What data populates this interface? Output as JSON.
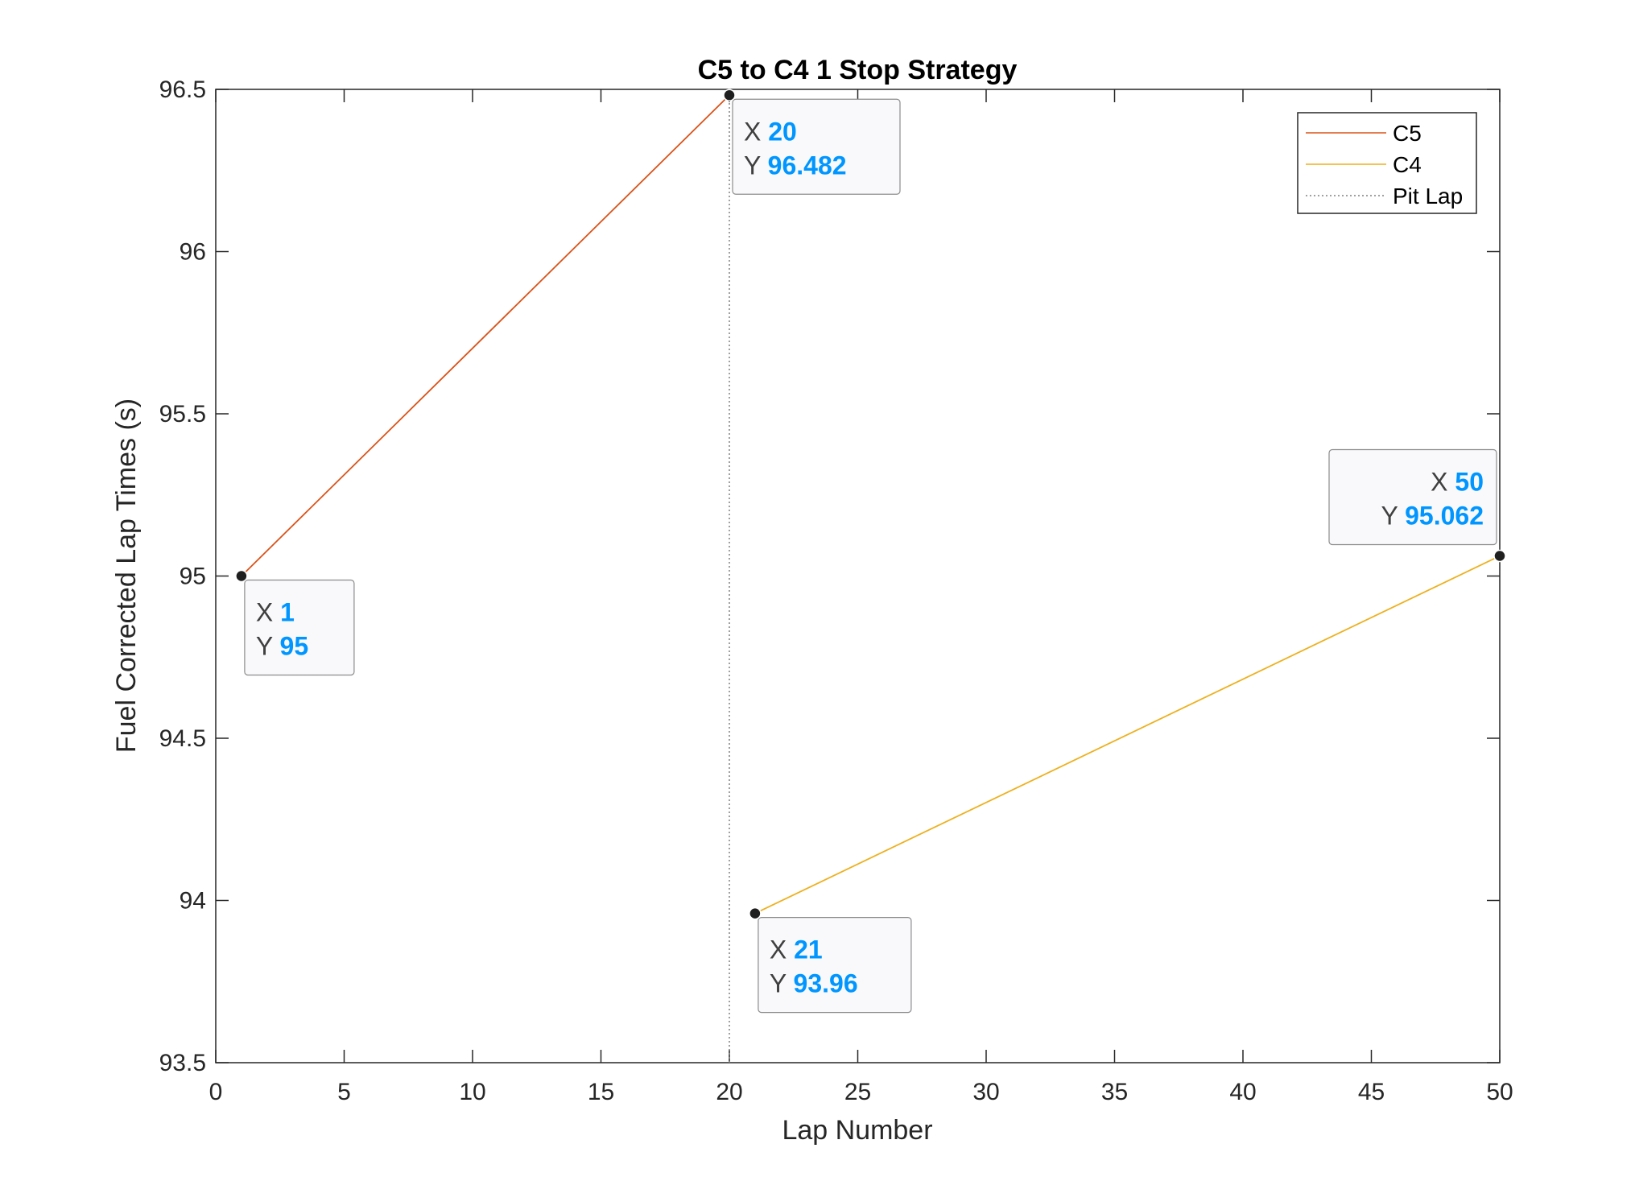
{
  "chart_data": {
    "type": "line",
    "title": "C5 to C4 1 Stop Strategy",
    "xlabel": "Lap Number",
    "ylabel": "Fuel Corrected Lap Times (s)",
    "xlim": [
      0,
      50
    ],
    "ylim": [
      93.5,
      96.5
    ],
    "xticks": [
      0,
      5,
      10,
      15,
      20,
      25,
      30,
      35,
      40,
      45,
      50
    ],
    "yticks": [
      93.5,
      94,
      94.5,
      95,
      95.5,
      96,
      96.5
    ],
    "xtick_labels": [
      "0",
      "5",
      "10",
      "15",
      "20",
      "25",
      "30",
      "35",
      "40",
      "45",
      "50"
    ],
    "ytick_labels": [
      "93.5",
      "94",
      "94.5",
      "95",
      "95.5",
      "96",
      "96.5"
    ],
    "grid": false,
    "legend_position": "top-right",
    "series": [
      {
        "name": "C5",
        "color": "#D95319",
        "style": "solid",
        "x": [
          1,
          20
        ],
        "y": [
          95,
          96.482
        ]
      },
      {
        "name": "C4",
        "color": "#EDB120",
        "style": "solid",
        "x": [
          21,
          50
        ],
        "y": [
          93.96,
          95.062
        ]
      },
      {
        "name": "Pit Lap",
        "color": "#808080",
        "style": "dotted",
        "x": [
          20,
          20
        ],
        "y": [
          93.5,
          96.5
        ]
      }
    ],
    "datatips": [
      {
        "x_label": "X",
        "y_label": "Y",
        "x": "1",
        "y": "95",
        "anchor": "below-right"
      },
      {
        "x_label": "X",
        "y_label": "Y",
        "x": "20",
        "y": "96.482",
        "anchor": "below-right"
      },
      {
        "x_label": "X",
        "y_label": "Y",
        "x": "21",
        "y": "93.96",
        "anchor": "below-right"
      },
      {
        "x_label": "X",
        "y_label": "Y",
        "x": "50",
        "y": "95.062",
        "anchor": "above-left"
      }
    ]
  }
}
